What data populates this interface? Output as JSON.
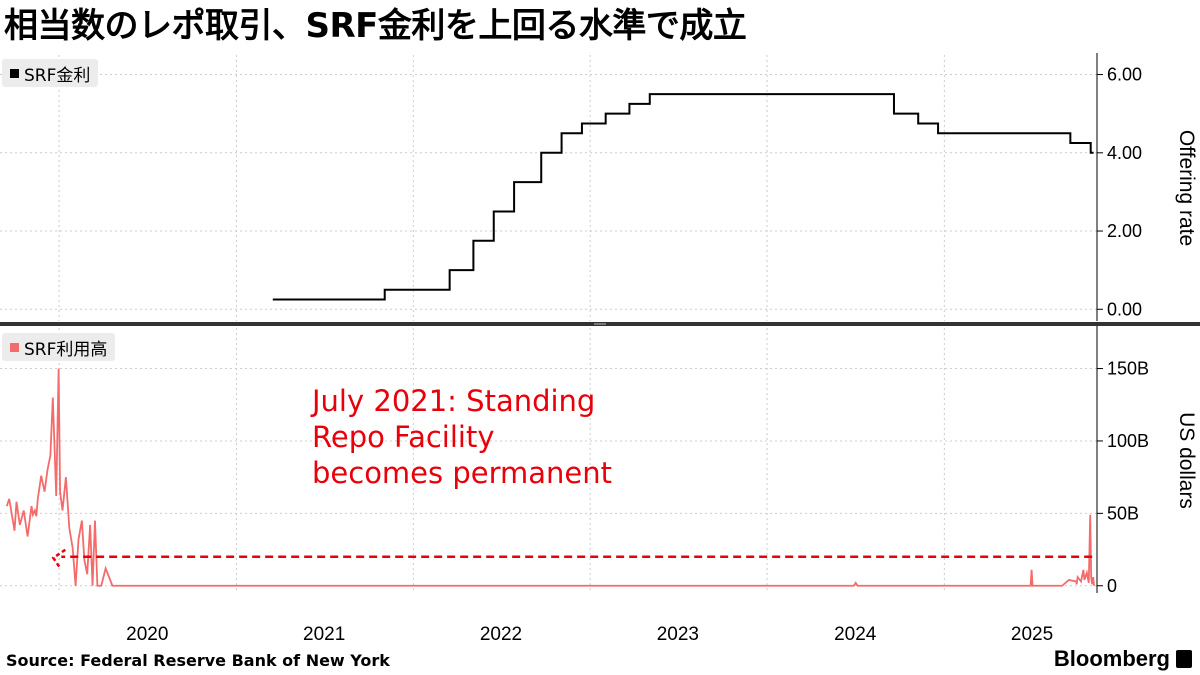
{
  "title": "相当数のレポ取引、SRF金利を上回る水準で成立",
  "source": "Source: Federal Reserve Bank of New York",
  "brand": "Bloomberg",
  "colors": {
    "rate_line": "#000000",
    "volume_line": "#f46b6b",
    "annotation": "#e8000b",
    "grid": "#cccccc"
  },
  "chart_data": [
    {
      "type": "line",
      "legend": "SRF金利",
      "ylabel": "Offering rate",
      "ylim": [
        -0.3,
        6.5
      ],
      "yticks": [
        "0.00",
        "2.00",
        "4.00",
        "6.00"
      ],
      "ytick_values": [
        0,
        2,
        4,
        6
      ],
      "step": true,
      "series": [
        {
          "name": "SRF金利",
          "x": [
            "2021-03-17",
            "2021-09-22",
            "2021-11-03",
            "2022-03-17",
            "2022-05-05",
            "2022-06-16",
            "2022-07-28",
            "2022-09-22",
            "2022-11-03",
            "2022-12-15",
            "2023-02-02",
            "2023-03-23",
            "2023-05-04",
            "2023-07-27",
            "2024-09-19",
            "2024-11-08",
            "2024-12-19",
            "2025-09-18",
            "2025-10-30",
            "2025-11-05"
          ],
          "values": [
            0.25,
            0.25,
            0.5,
            1.0,
            1.75,
            2.5,
            3.25,
            4.0,
            4.5,
            4.75,
            5.0,
            5.25,
            5.5,
            5.5,
            5.0,
            4.75,
            4.5,
            4.25,
            4.0,
            4.0
          ]
        }
      ]
    },
    {
      "type": "line",
      "legend": "SRF利用高",
      "ylabel": "US dollars",
      "ylim": [
        -5,
        178
      ],
      "yticks": [
        "0",
        "50B",
        "100B",
        "150B"
      ],
      "ytick_values": [
        0,
        50,
        100,
        150
      ],
      "xticks": [
        "2020",
        "2021",
        "2022",
        "2023",
        "2024",
        "2025"
      ],
      "series": [
        {
          "name": "SRF利用高",
          "x": [
            "2019-09-15",
            "2019-09-20",
            "2019-10-01",
            "2019-10-05",
            "2019-10-12",
            "2019-10-20",
            "2019-10-28",
            "2019-11-05",
            "2019-11-08",
            "2019-11-12",
            "2019-11-15",
            "2019-11-18",
            "2019-11-25",
            "2019-12-02",
            "2019-12-08",
            "2019-12-14",
            "2019-12-19",
            "2019-12-26",
            "2019-12-31",
            "2020-01-03",
            "2020-01-08",
            "2020-01-15",
            "2020-01-22",
            "2020-01-29",
            "2020-02-04",
            "2020-02-10",
            "2020-02-17",
            "2020-02-22",
            "2020-02-28",
            "2020-03-05",
            "2020-03-10",
            "2020-03-15",
            "2020-03-20",
            "2020-03-28",
            "2020-04-06",
            "2020-04-20",
            "2020-05-01",
            "2020-07-01",
            "2021-01-01",
            "2022-01-01",
            "2023-01-01",
            "2024-01-01",
            "2024-06-28",
            "2024-07-02",
            "2024-07-06",
            "2025-01-01",
            "2025-06-28",
            "2025-06-30",
            "2025-07-02",
            "2025-07-06",
            "2025-09-01",
            "2025-09-15",
            "2025-09-30",
            "2025-10-01",
            "2025-10-03",
            "2025-10-10",
            "2025-10-15",
            "2025-10-17",
            "2025-10-22",
            "2025-10-26",
            "2025-10-29",
            "2025-10-31",
            "2025-11-02",
            "2025-11-04",
            "2025-11-06"
          ],
          "values": [
            55,
            60,
            38,
            58,
            42,
            52,
            34,
            55,
            49,
            52,
            48,
            60,
            76,
            65,
            80,
            90,
            130,
            62,
            150,
            65,
            52,
            75,
            40,
            26,
            0,
            32,
            45,
            18,
            8,
            42,
            0,
            45,
            0,
            0,
            12,
            0,
            0,
            0,
            0,
            0,
            0,
            0,
            0,
            2,
            0,
            0,
            0,
            11,
            0,
            0,
            0,
            4,
            3,
            1,
            6,
            3,
            11,
            4,
            9,
            2,
            49,
            6,
            1,
            6,
            0
          ]
        }
      ],
      "annotation": {
        "lines": [
          "July 2021: Standing",
          "Repo Facility",
          "becomes permanent"
        ],
        "arrow_from": "2025-11-02",
        "arrow_to": "2019-12-20",
        "arrow_value": 20
      }
    }
  ]
}
